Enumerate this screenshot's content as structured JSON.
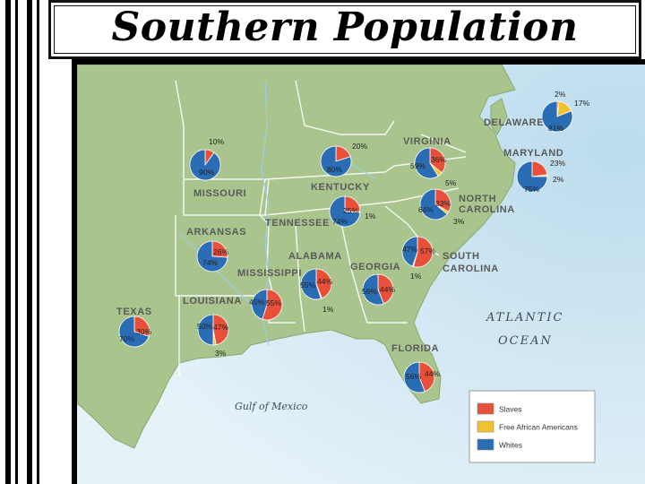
{
  "title": "Southern Population",
  "colors": {
    "slaves": "#e8503a",
    "free": "#f2c12e",
    "whites": "#2a6db5",
    "land": "#a9c48d",
    "water": "#cfe6f2"
  },
  "legend": [
    {
      "key": "slaves",
      "label": "Slaves"
    },
    {
      "key": "free",
      "label": "Free African Americans"
    },
    {
      "key": "whites",
      "label": "Whites"
    }
  ],
  "water_labels": {
    "atlantic": "ATLANTIC",
    "ocean": "OCEAN",
    "gulf": "Gulf of Mexico"
  },
  "states": [
    {
      "id": "missouri",
      "name": [
        "MISSOURI"
      ],
      "slaves": 10,
      "free": 0,
      "whites": 90,
      "labels": {
        "slaves": "10%",
        "whites": "90%"
      }
    },
    {
      "id": "kentucky",
      "name": [
        "KENTUCKY"
      ],
      "slaves": 20,
      "free": 0,
      "whites": 80,
      "labels": {
        "slaves": "20%",
        "whites": "80%"
      }
    },
    {
      "id": "virginia",
      "name": [
        "VIRGINIA"
      ],
      "slaves": 36,
      "free": 5,
      "whites": 59,
      "labels": {
        "slaves": "36%",
        "free": "5%",
        "whites": "59%"
      }
    },
    {
      "id": "delaware",
      "name": [
        "DELAWARE"
      ],
      "slaves": 2,
      "free": 17,
      "whites": 81,
      "labels": {
        "slaves": "2%",
        "free": "17%",
        "whites": "81%"
      }
    },
    {
      "id": "maryland",
      "name": [
        "MARYLAND"
      ],
      "slaves": 23,
      "free": 2,
      "whites": 75,
      "labels": {
        "slaves": "23%",
        "free": "2%",
        "whites": "75%"
      }
    },
    {
      "id": "north-carolina",
      "name": [
        "NORTH",
        "CAROLINA"
      ],
      "slaves": 33,
      "free": 3,
      "whites": 64,
      "labels": {
        "slaves": "33%",
        "free": "3%",
        "whites": "64%"
      }
    },
    {
      "id": "tennessee",
      "name": [
        "TENNESSEE"
      ],
      "slaves": 25,
      "free": 1,
      "whites": 74,
      "labels": {
        "slaves": "25%",
        "free": "1%",
        "whites": "74%"
      }
    },
    {
      "id": "arkansas",
      "name": [
        "ARKANSAS"
      ],
      "slaves": 26,
      "free": 0,
      "whites": 74,
      "labels": {
        "slaves": "26%",
        "whites": "74%"
      }
    },
    {
      "id": "south-carolina",
      "name": [
        "SOUTH",
        "CAROLINA"
      ],
      "slaves": 57,
      "free": 1,
      "whites": 47,
      "labels": {
        "slaves": "57%",
        "free": "1%",
        "whites": "47%"
      }
    },
    {
      "id": "georgia",
      "name": [
        "GEORGIA"
      ],
      "slaves": 44,
      "free": 0,
      "whites": 56,
      "labels": {
        "slaves": "44%",
        "whites": "56%"
      }
    },
    {
      "id": "alabama",
      "name": [
        "ALABAMA"
      ],
      "slaves": 44,
      "free": 1,
      "whites": 55,
      "labels": {
        "slaves": "44%",
        "free": "1%",
        "whites": "55%"
      }
    },
    {
      "id": "mississippi",
      "name": [
        "MISSISSIPPI"
      ],
      "slaves": 55,
      "free": 0,
      "whites": 45,
      "labels": {
        "slaves": "55%",
        "whites": "45%"
      }
    },
    {
      "id": "louisiana",
      "name": [
        "LOUISIANA"
      ],
      "slaves": 47,
      "free": 3,
      "whites": 50,
      "labels": {
        "slaves": "47%",
        "free": "3%",
        "whites": "50%"
      }
    },
    {
      "id": "texas",
      "name": [
        "TEXAS"
      ],
      "slaves": 30,
      "free": 0,
      "whites": 70,
      "labels": {
        "slaves": "30%",
        "whites": "70%"
      }
    },
    {
      "id": "florida",
      "name": [
        "FLORIDA"
      ],
      "slaves": 44,
      "free": 0,
      "whites": 56,
      "labels": {
        "slaves": "44%",
        "whites": "56%"
      }
    }
  ]
}
